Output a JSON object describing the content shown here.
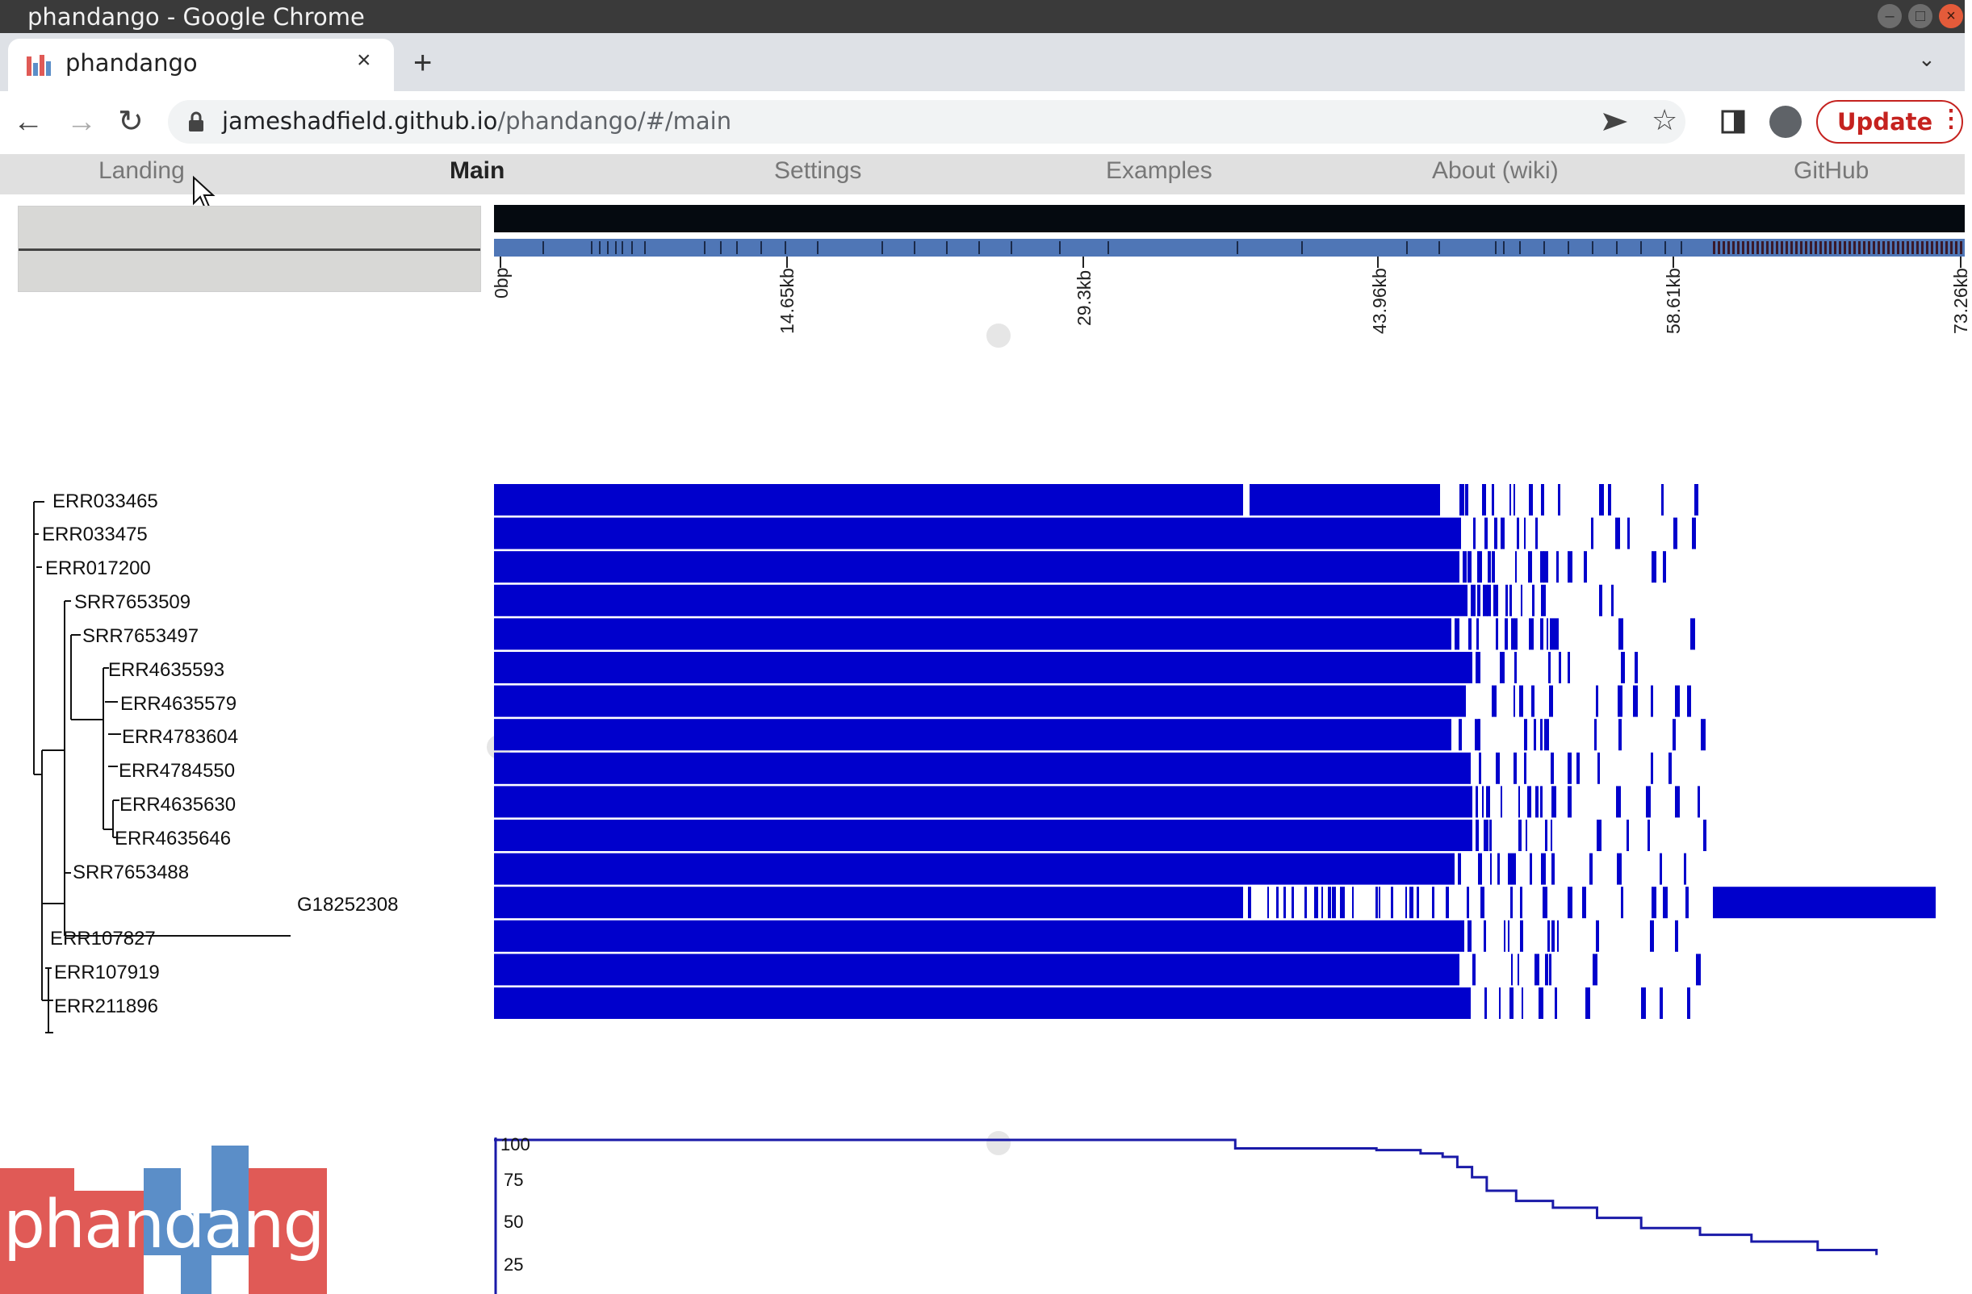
{
  "window": {
    "title": "phandango - Google Chrome"
  },
  "tab": {
    "title": "phandango",
    "close": "×",
    "new": "+"
  },
  "toolbar": {
    "url_host": "jameshadfield.github.io",
    "url_path": "/phandango/#/main",
    "update_label": "Update"
  },
  "nav": {
    "items": [
      "Landing",
      "Main",
      "Settings",
      "Examples",
      "About (wiki)",
      "GitHub"
    ],
    "active": "Main"
  },
  "genome_axis": {
    "ticks": [
      "0bp",
      "14.65kb",
      "29.3kb",
      "43.96kb",
      "58.61kb",
      "73.26kb"
    ]
  },
  "tree": {
    "leaves": [
      "ERR033465",
      "ERR033475",
      "ERR017200",
      "SRR7653509",
      "SRR7653497",
      "ERR4635593",
      "ERR4635579",
      "ERR4783604",
      "ERR4784550",
      "ERR4635630",
      "ERR4635646",
      "SRR7653488",
      "G18252308",
      "ERR107827",
      "ERR107919",
      "ERR211896"
    ]
  },
  "chart_data": {
    "type": "line",
    "ylim": [
      0,
      100
    ],
    "y_ticks": [
      "100",
      "75",
      "50",
      "25"
    ],
    "series": [
      {
        "x_frac": [
          0.0,
          0.5,
          0.504,
          0.6,
          0.63,
          0.645,
          0.655,
          0.665,
          0.675,
          0.695,
          0.72,
          0.75,
          0.78,
          0.82,
          0.855,
          0.9,
          0.94
        ],
        "values": [
          100,
          100,
          95,
          94,
          92,
          90,
          84,
          78,
          70,
          64,
          60,
          54,
          48,
          44,
          40,
          35,
          32
        ]
      }
    ]
  },
  "colors": {
    "presence_block": "#0000cc",
    "track_blue": "#4f76b6",
    "logo_red": "#e05a56",
    "logo_blue": "#5b8ec8"
  },
  "logo": {
    "text": "phandango"
  }
}
